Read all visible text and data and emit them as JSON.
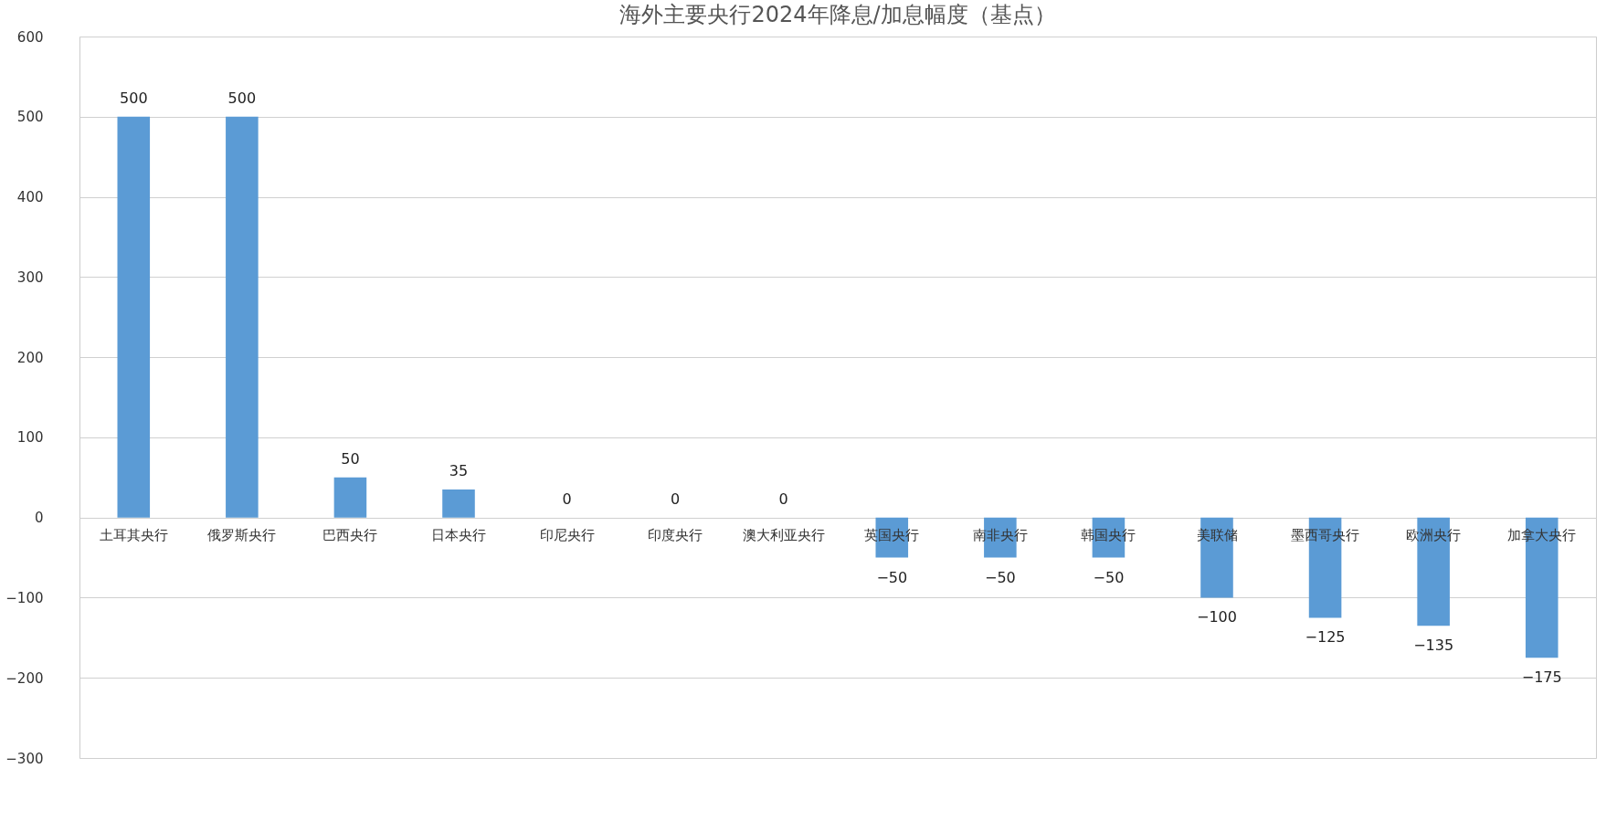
{
  "chart_data": {
    "type": "bar",
    "title": "海外主要央行2024年降息/加息幅度（基点）",
    "categories": [
      "土耳其央行",
      "俄罗斯央行",
      "巴西央行",
      "日本央行",
      "印尼央行",
      "印度央行",
      "澳大利亚央行",
      "英国央行",
      "南非央行",
      "韩国央行",
      "美联储",
      "墨西哥央行",
      "欧洲央行",
      "加拿大央行"
    ],
    "values": [
      500,
      500,
      50,
      35,
      0,
      0,
      0,
      -50,
      -50,
      -50,
      -100,
      -125,
      -135,
      -175
    ],
    "color": "#5b9bd5",
    "ylim": [
      -300,
      600
    ],
    "yticks": [
      -300,
      -200,
      -100,
      0,
      100,
      200,
      300,
      400,
      500,
      600
    ],
    "grid": "y",
    "data_labels": true
  }
}
